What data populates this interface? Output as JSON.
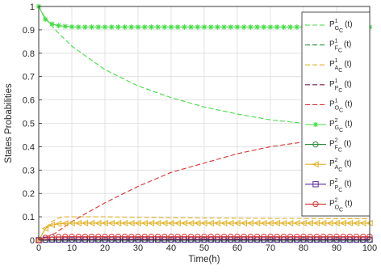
{
  "chart_data": {
    "type": "line",
    "xlabel": "Time(h)",
    "ylabel": "States Probabilities",
    "xlim": [
      0,
      100
    ],
    "ylim": [
      0,
      1
    ],
    "xticks": [
      0,
      10,
      20,
      30,
      40,
      50,
      60,
      70,
      80,
      90,
      100
    ],
    "yticks": [
      0,
      0.1,
      0.2,
      0.3,
      0.4,
      0.5,
      0.6,
      0.7,
      0.8,
      0.9,
      1
    ],
    "grid": true,
    "legend_position": "top-right",
    "series": [
      {
        "legend": {
          "letter": "P",
          "sup": "1",
          "sub": "G",
          "subsub": "C",
          "tail": "(t)"
        },
        "color": "#44dd44",
        "style": "dashed",
        "marker": "none",
        "x": [
          0,
          2,
          5,
          10,
          15,
          20,
          30,
          40,
          50,
          60,
          70,
          80,
          90,
          100
        ],
        "y": [
          1.0,
          0.95,
          0.9,
          0.83,
          0.78,
          0.73,
          0.66,
          0.61,
          0.57,
          0.54,
          0.515,
          0.5,
          0.49,
          0.48
        ]
      },
      {
        "legend": {
          "letter": "P",
          "sup": "1",
          "sub": "F",
          "subsub": "C",
          "tail": "(t)"
        },
        "color": "#2e8b3a",
        "style": "dashed",
        "marker": "none",
        "x": [
          0,
          100
        ],
        "y": [
          0.002,
          0.002
        ]
      },
      {
        "legend": {
          "letter": "P",
          "sup": "1",
          "sub": "A",
          "subsub": "C",
          "tail": "(t)"
        },
        "color": "#e0b020",
        "style": "dashed",
        "marker": "none",
        "x": [
          0,
          2,
          4,
          6,
          8,
          10,
          15,
          20,
          30,
          40,
          50,
          60,
          70,
          80,
          90,
          100
        ],
        "y": [
          0,
          0.05,
          0.08,
          0.095,
          0.1,
          0.1,
          0.1,
          0.1,
          0.098,
          0.096,
          0.095,
          0.094,
          0.093,
          0.093,
          0.092,
          0.092
        ]
      },
      {
        "legend": {
          "letter": "P",
          "sup": "1",
          "sub": "P",
          "subsub": "C",
          "tail": "(t)"
        },
        "color": "#7a1f4a",
        "style": "dashed",
        "marker": "none",
        "x": [
          0,
          100
        ],
        "y": [
          0.003,
          0.003
        ]
      },
      {
        "legend": {
          "letter": "P",
          "sup": "1",
          "sub": "O",
          "subsub": "C",
          "tail": "(t)"
        },
        "color": "#dd3333",
        "style": "dashed",
        "marker": "none",
        "x": [
          0,
          5,
          10,
          20,
          30,
          40,
          50,
          60,
          70,
          80,
          90,
          100
        ],
        "y": [
          0,
          0.03,
          0.08,
          0.16,
          0.23,
          0.29,
          0.33,
          0.37,
          0.4,
          0.42,
          0.43,
          0.44
        ]
      },
      {
        "legend": {
          "letter": "P",
          "sup": "2",
          "sub": "G",
          "subsub": "C",
          "tail": "(t)"
        },
        "color": "#44dd44",
        "style": "solid",
        "marker": "asterisk",
        "x": [
          0,
          2,
          4,
          6,
          8,
          10,
          12,
          14,
          16,
          18,
          20,
          22,
          24,
          26,
          28,
          30,
          32,
          34,
          36,
          38,
          40,
          42,
          44,
          46,
          48,
          50,
          52,
          54,
          56,
          58,
          60,
          62,
          64,
          66,
          68,
          70,
          72,
          74,
          76,
          78,
          80,
          82,
          84,
          86,
          88,
          90,
          92,
          94,
          96,
          98,
          100
        ],
        "y": [
          1.0,
          0.945,
          0.925,
          0.918,
          0.915,
          0.913,
          0.912,
          0.912,
          0.912,
          0.912,
          0.912,
          0.912,
          0.912,
          0.912,
          0.912,
          0.912,
          0.912,
          0.912,
          0.912,
          0.912,
          0.912,
          0.912,
          0.912,
          0.912,
          0.912,
          0.912,
          0.912,
          0.912,
          0.912,
          0.912,
          0.912,
          0.912,
          0.912,
          0.912,
          0.912,
          0.912,
          0.912,
          0.912,
          0.912,
          0.912,
          0.912,
          0.912,
          0.912,
          0.912,
          0.912,
          0.912,
          0.912,
          0.912,
          0.912,
          0.912,
          0.912
        ]
      },
      {
        "legend": {
          "letter": "P",
          "sup": "2",
          "sub": "F",
          "subsub": "C",
          "tail": "(t)"
        },
        "color": "#2e8b3a",
        "style": "solid",
        "marker": "circle",
        "x": [
          0,
          2,
          4,
          6,
          8,
          10,
          12,
          14,
          16,
          18,
          20,
          22,
          24,
          26,
          28,
          30,
          32,
          34,
          36,
          38,
          40,
          42,
          44,
          46,
          48,
          50,
          52,
          54,
          56,
          58,
          60,
          62,
          64,
          66,
          68,
          70,
          72,
          74,
          76,
          78,
          80,
          82,
          84,
          86,
          88,
          90,
          92,
          94,
          96,
          98,
          100
        ],
        "y": [
          0,
          0.002,
          0.003,
          0.003,
          0.003,
          0.003,
          0.003,
          0.003,
          0.003,
          0.003,
          0.003,
          0.003,
          0.003,
          0.003,
          0.003,
          0.003,
          0.003,
          0.003,
          0.003,
          0.003,
          0.003,
          0.003,
          0.003,
          0.003,
          0.003,
          0.003,
          0.003,
          0.003,
          0.003,
          0.003,
          0.003,
          0.003,
          0.003,
          0.003,
          0.003,
          0.003,
          0.003,
          0.003,
          0.003,
          0.003,
          0.003,
          0.003,
          0.003,
          0.003,
          0.003,
          0.003,
          0.003,
          0.003,
          0.003,
          0.003,
          0.003
        ]
      },
      {
        "legend": {
          "letter": "P",
          "sup": "2",
          "sub": "A",
          "subsub": "C",
          "tail": "(t)"
        },
        "color": "#e0b020",
        "style": "solid",
        "marker": "triangle-left",
        "x": [
          0,
          2,
          4,
          6,
          8,
          10,
          12,
          14,
          16,
          18,
          20,
          22,
          24,
          26,
          28,
          30,
          32,
          34,
          36,
          38,
          40,
          42,
          44,
          46,
          48,
          50,
          52,
          54,
          56,
          58,
          60,
          62,
          64,
          66,
          68,
          70,
          72,
          74,
          76,
          78,
          80,
          82,
          84,
          86,
          88,
          90,
          92,
          94,
          96,
          98,
          100
        ],
        "y": [
          0,
          0.05,
          0.065,
          0.07,
          0.072,
          0.073,
          0.073,
          0.073,
          0.073,
          0.073,
          0.073,
          0.073,
          0.073,
          0.073,
          0.073,
          0.073,
          0.073,
          0.073,
          0.073,
          0.073,
          0.073,
          0.073,
          0.073,
          0.073,
          0.073,
          0.073,
          0.073,
          0.073,
          0.073,
          0.073,
          0.073,
          0.073,
          0.073,
          0.073,
          0.073,
          0.073,
          0.073,
          0.073,
          0.073,
          0.073,
          0.073,
          0.073,
          0.073,
          0.073,
          0.073,
          0.073,
          0.073,
          0.073,
          0.073,
          0.073,
          0.073
        ]
      },
      {
        "legend": {
          "letter": "P",
          "sup": "2",
          "sub": "P",
          "subsub": "C",
          "tail": "(t)"
        },
        "color": "#5a2a9a",
        "style": "solid",
        "marker": "square",
        "x": [
          0,
          2,
          4,
          6,
          8,
          10,
          12,
          14,
          16,
          18,
          20,
          22,
          24,
          26,
          28,
          30,
          32,
          34,
          36,
          38,
          40,
          42,
          44,
          46,
          48,
          50,
          52,
          54,
          56,
          58,
          60,
          62,
          64,
          66,
          68,
          70,
          72,
          74,
          76,
          78,
          80,
          82,
          84,
          86,
          88,
          90,
          92,
          94,
          96,
          98,
          100
        ],
        "y": [
          0,
          0.002,
          0.002,
          0.002,
          0.002,
          0.002,
          0.002,
          0.002,
          0.002,
          0.002,
          0.002,
          0.002,
          0.002,
          0.002,
          0.002,
          0.002,
          0.002,
          0.002,
          0.002,
          0.002,
          0.002,
          0.002,
          0.002,
          0.002,
          0.002,
          0.002,
          0.002,
          0.002,
          0.002,
          0.002,
          0.002,
          0.002,
          0.002,
          0.002,
          0.002,
          0.002,
          0.002,
          0.002,
          0.002,
          0.002,
          0.002,
          0.002,
          0.002,
          0.002,
          0.002,
          0.002,
          0.002,
          0.002,
          0.002,
          0.002,
          0.002
        ]
      },
      {
        "legend": {
          "letter": "P",
          "sup": "2",
          "sub": "O",
          "subsub": "C",
          "tail": "(t)"
        },
        "color": "#dd3333",
        "style": "solid",
        "marker": "circle",
        "x": [
          0,
          2,
          4,
          6,
          8,
          10,
          12,
          14,
          16,
          18,
          20,
          22,
          24,
          26,
          28,
          30,
          32,
          34,
          36,
          38,
          40,
          42,
          44,
          46,
          48,
          50,
          52,
          54,
          56,
          58,
          60,
          62,
          64,
          66,
          68,
          70,
          72,
          74,
          76,
          78,
          80,
          82,
          84,
          86,
          88,
          90,
          92,
          94,
          96,
          98,
          100
        ],
        "y": [
          0,
          0.01,
          0.013,
          0.014,
          0.015,
          0.015,
          0.015,
          0.015,
          0.015,
          0.015,
          0.015,
          0.015,
          0.015,
          0.015,
          0.015,
          0.015,
          0.015,
          0.015,
          0.015,
          0.015,
          0.015,
          0.015,
          0.015,
          0.015,
          0.015,
          0.015,
          0.015,
          0.015,
          0.015,
          0.015,
          0.015,
          0.015,
          0.015,
          0.015,
          0.015,
          0.015,
          0.015,
          0.015,
          0.015,
          0.015,
          0.015,
          0.015,
          0.015,
          0.015,
          0.015,
          0.015,
          0.015,
          0.015,
          0.015,
          0.015,
          0.015
        ]
      }
    ]
  }
}
